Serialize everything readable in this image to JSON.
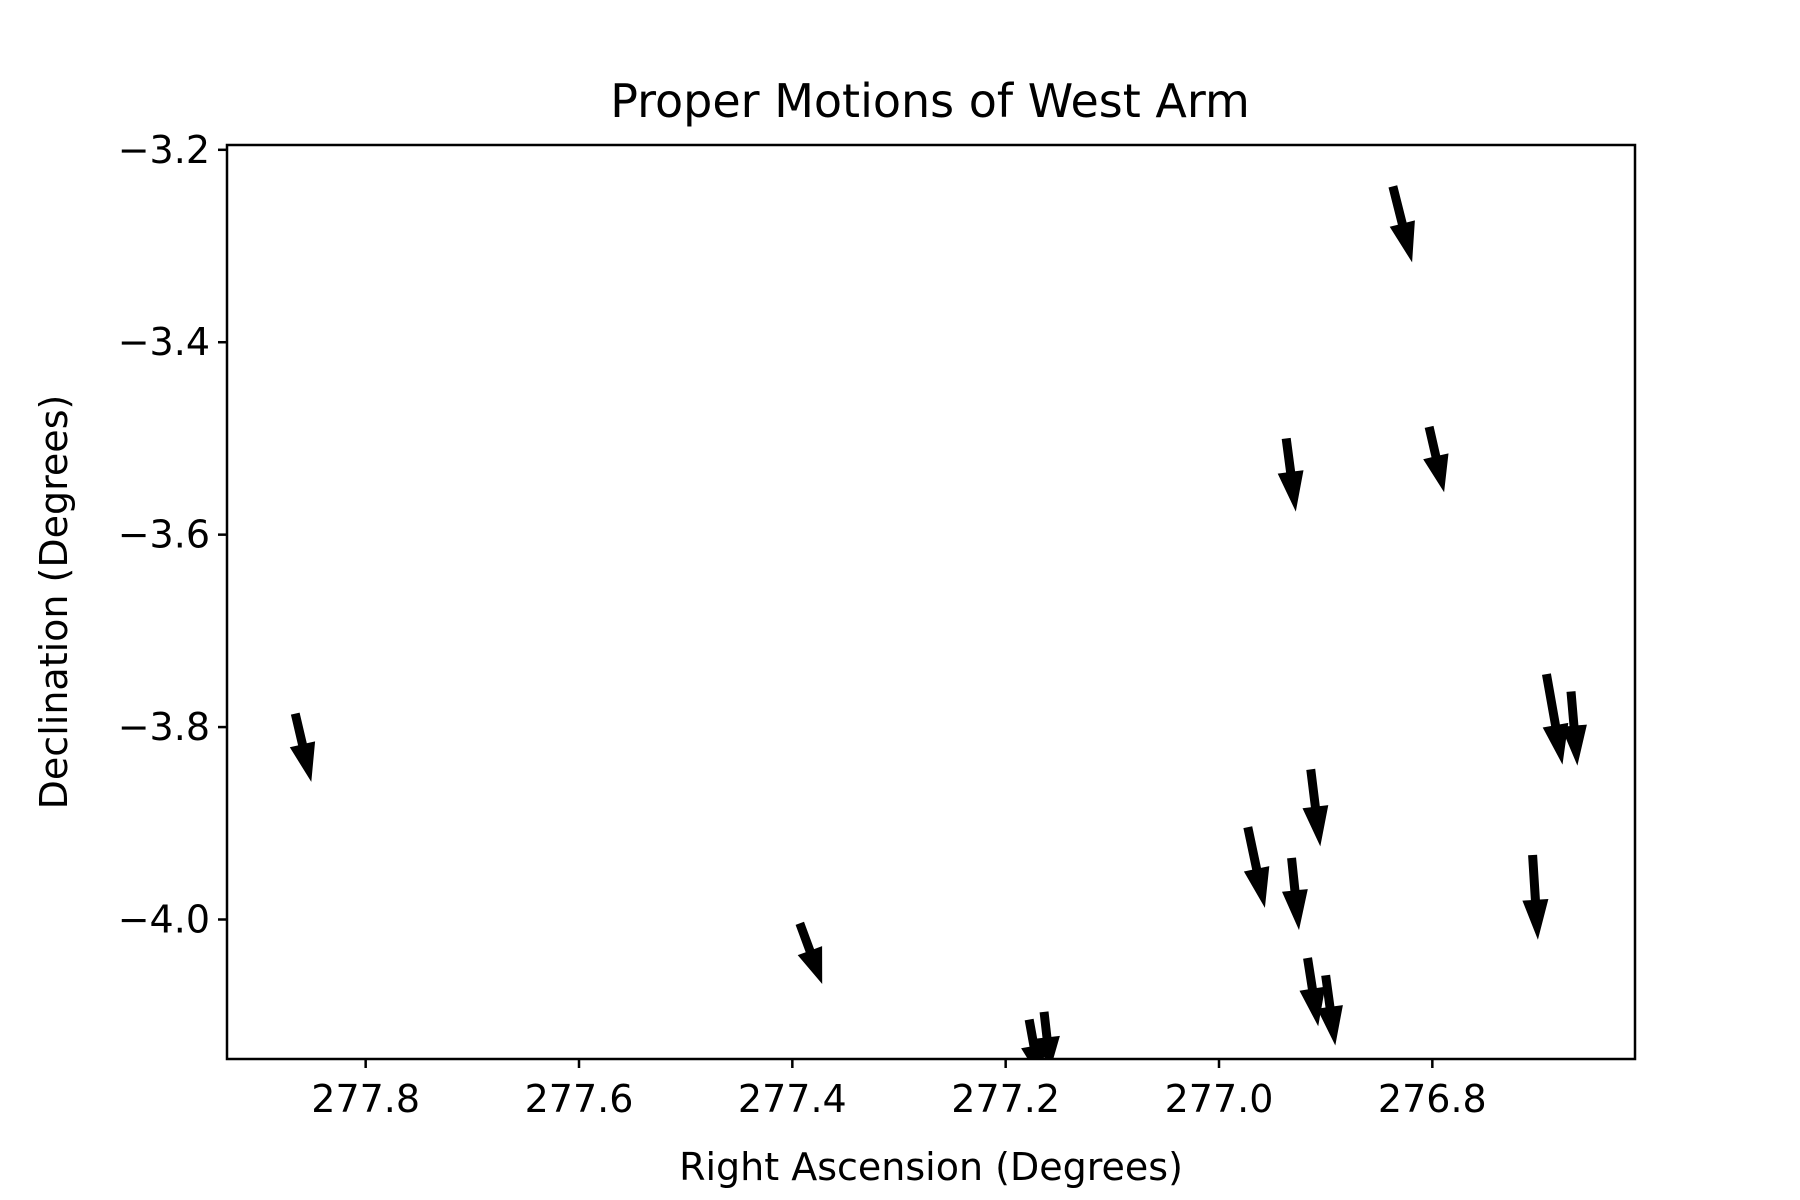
{
  "chart_data": {
    "type": "quiver",
    "title": "Proper Motions of West Arm",
    "xlabel": "Right Ascension (Degrees)",
    "ylabel": "Declination (Degrees)",
    "xlim": [
      277.93,
      276.61
    ],
    "ylim": [
      -4.145,
      -3.195
    ],
    "x_inverted": true,
    "grid": false,
    "x_ticks": [
      {
        "value": 277.8,
        "label": "277.8"
      },
      {
        "value": 277.6,
        "label": "277.6"
      },
      {
        "value": 277.4,
        "label": "277.4"
      },
      {
        "value": 277.2,
        "label": "277.2"
      },
      {
        "value": 277.0,
        "label": "277.0"
      },
      {
        "value": 276.8,
        "label": "276.8"
      }
    ],
    "y_ticks": [
      {
        "value": -3.2,
        "label": "−3.2"
      },
      {
        "value": -3.4,
        "label": "−3.4"
      },
      {
        "value": -3.6,
        "label": "−3.6"
      },
      {
        "value": -3.8,
        "label": "−3.8"
      },
      {
        "value": -4.0,
        "label": "−4.0"
      }
    ],
    "arrows": [
      {
        "x0": 277.866,
        "y0": -3.786,
        "x1": 277.851,
        "y1": -3.857
      },
      {
        "x0": 277.393,
        "y0": -4.004,
        "x1": 277.372,
        "y1": -4.067
      },
      {
        "x0": 277.178,
        "y0": -4.104,
        "x1": 277.168,
        "y1": -4.165
      },
      {
        "x0": 277.164,
        "y0": -4.096,
        "x1": 277.158,
        "y1": -4.155
      },
      {
        "x0": 276.973,
        "y0": -3.904,
        "x1": 276.957,
        "y1": -3.988
      },
      {
        "x0": 276.937,
        "y0": -3.5,
        "x1": 276.928,
        "y1": -3.576
      },
      {
        "x0": 276.932,
        "y0": -3.936,
        "x1": 276.925,
        "y1": -4.011
      },
      {
        "x0": 276.914,
        "y0": -3.844,
        "x1": 276.905,
        "y1": -3.924
      },
      {
        "x0": 276.917,
        "y0": -4.04,
        "x1": 276.907,
        "y1": -4.111
      },
      {
        "x0": 276.9,
        "y0": -4.058,
        "x1": 276.891,
        "y1": -4.131
      },
      {
        "x0": 276.837,
        "y0": -3.238,
        "x1": 276.819,
        "y1": -3.317
      },
      {
        "x0": 276.803,
        "y0": -3.488,
        "x1": 276.789,
        "y1": -3.556
      },
      {
        "x0": 276.706,
        "y0": -3.933,
        "x1": 276.701,
        "y1": -4.021
      },
      {
        "x0": 276.693,
        "y0": -3.745,
        "x1": 276.678,
        "y1": -3.839
      },
      {
        "x0": 276.67,
        "y0": -3.763,
        "x1": 276.664,
        "y1": -3.84
      }
    ]
  }
}
